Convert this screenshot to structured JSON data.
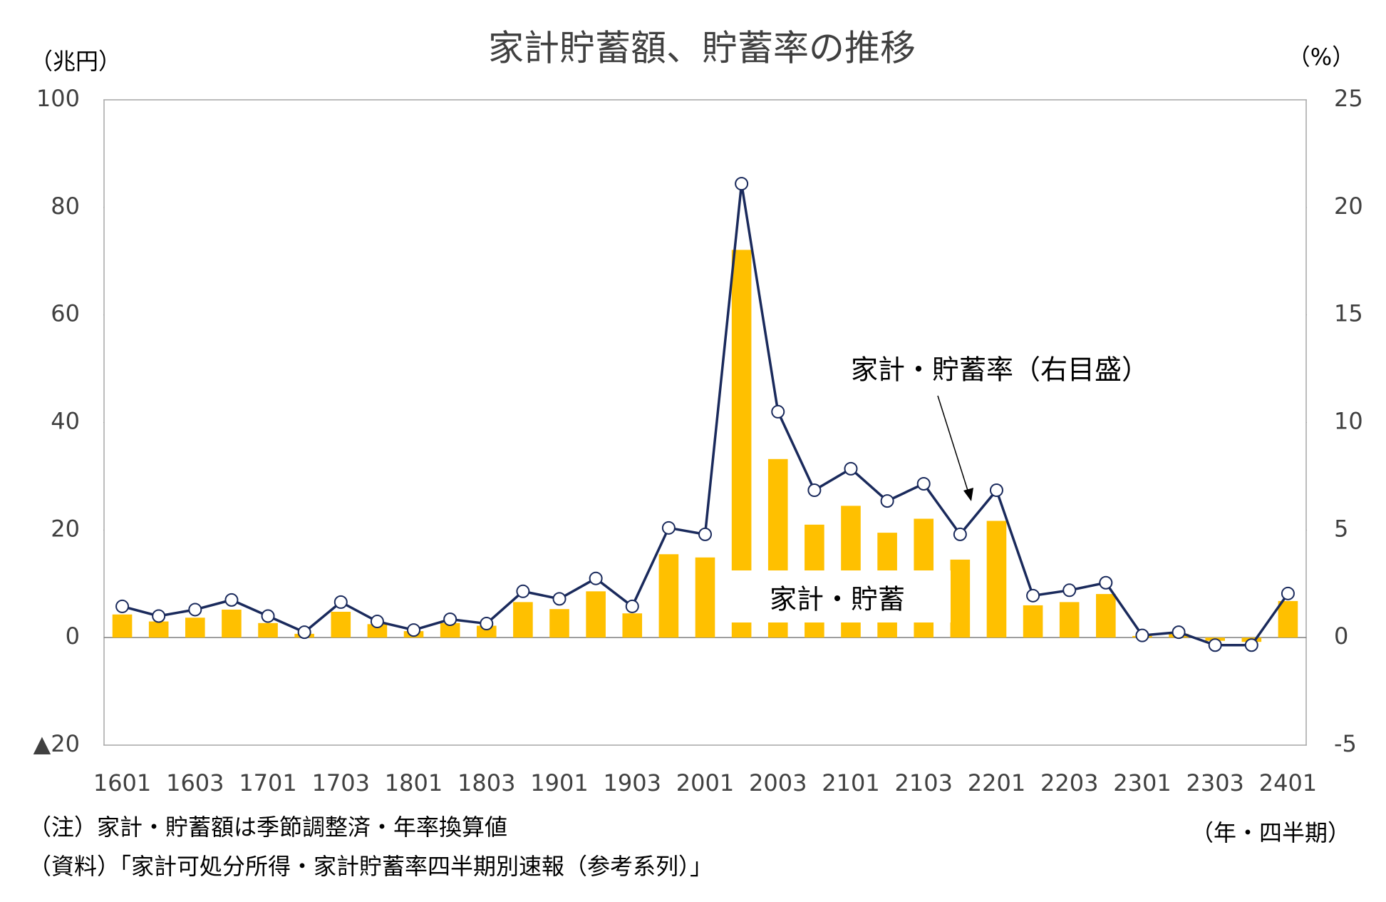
{
  "chart_data": {
    "type": "combo",
    "title": "家計貯蓄額、貯蓄率の推移",
    "y_label": "（兆円）",
    "y2_label": "（%）",
    "x_label": "（年・四半期）",
    "notes": [
      "（注）家計・貯蓄額は季節調整済・年率換算値",
      "（資料）「家計可処分所得・家計貯蓄率四半期別速報（参考系列）」"
    ],
    "categories": [
      "1601",
      null,
      "1603",
      null,
      "1701",
      null,
      "1703",
      null,
      "1801",
      null,
      "1803",
      null,
      "1901",
      null,
      "1903",
      null,
      "2001",
      null,
      "2003",
      null,
      "2101",
      null,
      "2103",
      null,
      "2201",
      null,
      "2203",
      null,
      "2301",
      null,
      "2303",
      null,
      "2401"
    ],
    "series": [
      {
        "name": "家計・貯蓄",
        "type": "bar",
        "color": "#ffc000",
        "values": [
          4.3,
          3.0,
          3.7,
          5.2,
          2.7,
          0.7,
          4.8,
          2.5,
          1.2,
          2.7,
          2.2,
          6.6,
          5.3,
          8.6,
          4.5,
          15.5,
          14.9,
          72.1,
          33.2,
          21.0,
          24.5,
          19.5,
          22.1,
          14.5,
          21.7,
          6.0,
          6.6,
          8.1,
          0.3,
          0.7,
          -0.6,
          -0.8,
          6.8
        ]
      },
      {
        "name": "家計・貯蓄率（右目盛）",
        "type": "line",
        "axis": "y2",
        "color": "#1a2a5c",
        "values": [
          1.45,
          1.0,
          1.3,
          1.75,
          1.0,
          0.25,
          1.65,
          0.75,
          0.35,
          0.85,
          0.65,
          2.15,
          1.8,
          2.75,
          1.45,
          5.1,
          4.8,
          21.1,
          10.5,
          6.85,
          7.85,
          6.35,
          7.15,
          4.8,
          6.85,
          1.95,
          2.2,
          2.55,
          0.1,
          0.25,
          -0.35,
          -0.35,
          2.05
        ]
      }
    ],
    "ylim": [
      -20,
      100
    ],
    "yticks": [
      100,
      80,
      60,
      40,
      20,
      0,
      {
        "value": -20,
        "label": "▲20"
      }
    ],
    "y2lim": [
      -5,
      25
    ],
    "y2ticks": [
      25,
      20,
      15,
      10,
      5,
      0,
      -5
    ],
    "grid": false
  }
}
